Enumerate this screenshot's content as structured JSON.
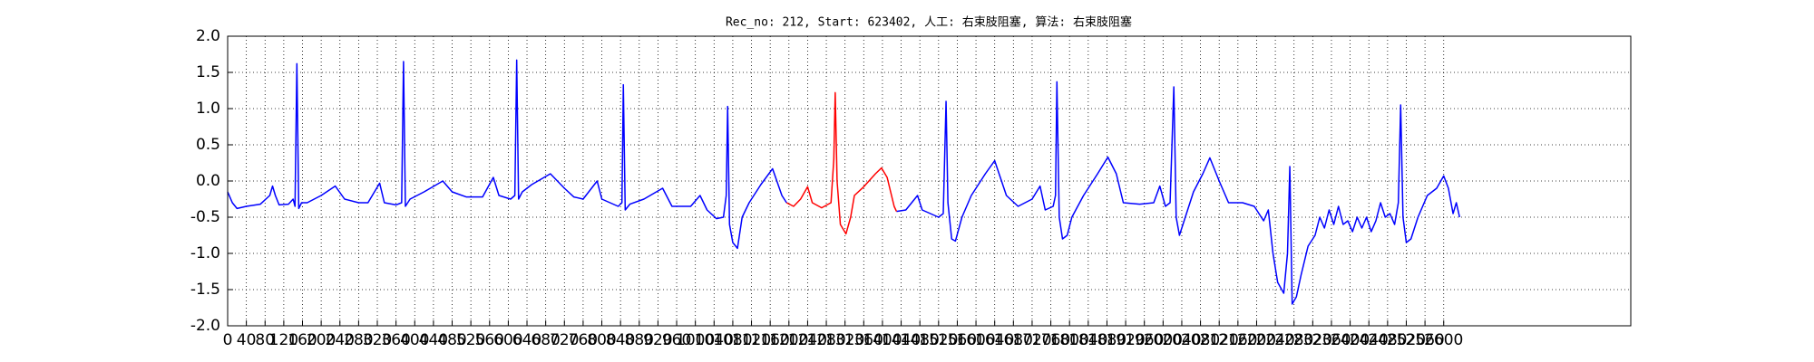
{
  "chart_data": {
    "type": "line",
    "title": "Rec_no: 212, Start: 623402, 人工: 右束肢阻塞, 算法: 右束肢阻塞",
    "xlim": [
      0,
      3000
    ],
    "ylim": [
      -2,
      2
    ],
    "xticks": [
      0,
      40,
      80,
      120,
      160,
      200,
      240,
      280,
      320,
      360,
      400,
      440,
      480,
      520,
      560,
      600,
      640,
      680,
      720,
      760,
      800,
      840,
      880,
      920,
      960,
      1000,
      1040,
      1080,
      1120,
      1160,
      1200,
      1240,
      1280,
      1320,
      1360,
      1400,
      1440,
      1480,
      1520,
      1560,
      1600,
      1640,
      1680,
      1720,
      1760,
      1800,
      1840,
      1880,
      1920,
      1960,
      2000,
      2040,
      2080,
      2120,
      2160,
      2200,
      2240,
      2280,
      2320,
      2360,
      2400,
      2440,
      2480,
      2520,
      2560,
      2600
    ],
    "yticks": [
      {
        "value": -2,
        "label": "-2.0"
      },
      -1.5,
      {
        "value": -1,
        "label": "-1.0"
      },
      -0.5,
      {
        "value": 0,
        "label": "0.0"
      },
      0.5,
      {
        "value": 1,
        "label": "1.0"
      },
      1.5,
      {
        "value": 2,
        "label": "2.0"
      }
    ],
    "grid": true,
    "series": [
      {
        "color": "#0000ff",
        "x": [
          0,
          10,
          20,
          40,
          70,
          90,
          96,
          102,
          110,
          130,
          140,
          144,
          148,
          152,
          158,
          170,
          200,
          230,
          250,
          280,
          300,
          325,
          335,
          360,
          372,
          376,
          380,
          390,
          420,
          460,
          480,
          510,
          545,
          568,
          580,
          605,
          614,
          618,
          622,
          630,
          650,
          690,
          720,
          740,
          760,
          790,
          800,
          835,
          843,
          846,
          850,
          860,
          890,
          930,
          950,
          990,
          1010,
          1025,
          1045,
          1060,
          1066,
          1069,
          1073,
          1080,
          1090,
          1100,
          1115,
          1140,
          1165,
          1185,
          1195,
          1300,
          1430,
          1450,
          1475,
          1485,
          1520,
          1530,
          1536,
          1540,
          1548,
          1556,
          1570,
          1590,
          1620,
          1640,
          1665,
          1690,
          1720,
          1737,
          1748,
          1765,
          1770,
          1773,
          1778,
          1785,
          1795,
          1805,
          1830,
          1860,
          1882,
          1900,
          1915,
          1950,
          1980,
          1993,
          2005,
          2015,
          2023,
          2028,
          2035,
          2045,
          2065,
          2085,
          2100,
          2120,
          2140,
          2170,
          2195,
          2215,
          2225,
          2235,
          2245,
          2258,
          2266,
          2271,
          2276,
          2285,
          2295,
          2310,
          2325,
          2335,
          2345,
          2355,
          2365,
          2375,
          2385,
          2395,
          2405,
          2415,
          2425,
          2435,
          2445,
          2455,
          2465,
          2475,
          2485,
          2495,
          2503,
          2508,
          2513,
          2520,
          2530,
          2545,
          2565,
          2585,
          2600,
          2610,
          2620,
          2627,
          2634
        ],
        "values": [
          -0.15,
          -0.3,
          -0.38,
          -0.35,
          -0.32,
          -0.2,
          -0.07,
          -0.2,
          -0.33,
          -0.32,
          -0.25,
          -0.35,
          1.62,
          -0.38,
          -0.3,
          -0.3,
          -0.2,
          -0.07,
          -0.25,
          -0.3,
          -0.3,
          -0.03,
          -0.3,
          -0.33,
          -0.3,
          1.65,
          -0.35,
          -0.25,
          -0.15,
          0.0,
          -0.15,
          -0.22,
          -0.22,
          0.05,
          -0.2,
          -0.25,
          -0.2,
          1.67,
          -0.25,
          -0.15,
          -0.05,
          0.1,
          -0.1,
          -0.22,
          -0.25,
          0.0,
          -0.25,
          -0.35,
          -0.3,
          1.33,
          -0.4,
          -0.32,
          -0.25,
          -0.1,
          -0.35,
          -0.35,
          -0.2,
          -0.4,
          -0.52,
          -0.5,
          -0.2,
          1.03,
          -0.6,
          -0.85,
          -0.93,
          -0.5,
          -0.3,
          -0.05,
          0.17,
          -0.2,
          -0.3,
          null,
          -0.42,
          -0.4,
          -0.2,
          -0.4,
          -0.5,
          -0.45,
          1.1,
          -0.3,
          -0.8,
          -0.83,
          -0.5,
          -0.2,
          0.1,
          0.28,
          -0.2,
          -0.35,
          -0.25,
          -0.07,
          -0.4,
          -0.35,
          -0.2,
          1.37,
          -0.5,
          -0.8,
          -0.75,
          -0.5,
          -0.2,
          0.1,
          0.33,
          0.1,
          -0.3,
          -0.32,
          -0.3,
          -0.07,
          -0.35,
          -0.3,
          1.3,
          -0.5,
          -0.75,
          -0.55,
          -0.15,
          0.1,
          0.32,
          0.0,
          -0.3,
          -0.3,
          -0.35,
          -0.55,
          -0.4,
          -1.0,
          -1.4,
          -1.55,
          -1.0,
          0.2,
          -1.7,
          -1.6,
          -1.3,
          -0.9,
          -0.75,
          -0.5,
          -0.65,
          -0.4,
          -0.6,
          -0.35,
          -0.6,
          -0.55,
          -0.7,
          -0.5,
          -0.65,
          -0.5,
          -0.7,
          -0.55,
          -0.3,
          -0.5,
          -0.45,
          -0.6,
          -0.3,
          1.05,
          -0.5,
          -0.85,
          -0.8,
          -0.5,
          -0.2,
          -0.1,
          0.07,
          -0.1,
          -0.45,
          -0.3,
          -0.5
        ]
      },
      {
        "color": "#ff0000",
        "x": [
          1195,
          1210,
          1225,
          1240,
          1250,
          1270,
          1290,
          1296,
          1299,
          1303,
          1310,
          1322,
          1332,
          1340,
          1360,
          1385,
          1398,
          1410,
          1425,
          1430
        ],
        "values": [
          -0.3,
          -0.35,
          -0.25,
          -0.08,
          -0.3,
          -0.37,
          -0.3,
          0.3,
          1.22,
          0.0,
          -0.6,
          -0.73,
          -0.5,
          -0.2,
          -0.08,
          0.1,
          0.18,
          0.05,
          -0.35,
          -0.42
        ]
      }
    ]
  }
}
